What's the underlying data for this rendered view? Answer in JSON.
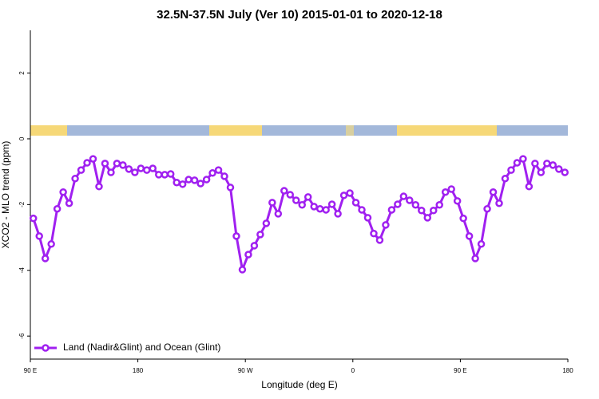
{
  "chart_data": {
    "type": "line",
    "title": "32.5N-37.5N July (Ver 10)   2015-01-01 to 2020-12-18",
    "x_label": "Longitude (deg E)",
    "y_label": "XCO2 - MLO trend (ppm)",
    "x": [
      92.5,
      97.5,
      102.5,
      107.5,
      112.5,
      117.5,
      122.5,
      127.5,
      132.5,
      137.5,
      142.5,
      147.5,
      152.5,
      157.5,
      162.5,
      167.5,
      172.5,
      177.5,
      182.5,
      187.5,
      192.5,
      197.5,
      202.5,
      207.5,
      212.5,
      217.5,
      222.5,
      227.5,
      232.5,
      237.5,
      242.5,
      247.5,
      252.5,
      257.5,
      262.5,
      267.5,
      272.5,
      277.5,
      282.5,
      287.5,
      292.5,
      297.5,
      302.5,
      307.5,
      312.5,
      317.5,
      322.5,
      327.5,
      332.5,
      337.5,
      342.5,
      347.5,
      352.5,
      357.5,
      362.5,
      367.5,
      372.5,
      377.5,
      382.5,
      387.5,
      392.5,
      397.5,
      402.5,
      407.5,
      412.5,
      417.5,
      422.5,
      427.5,
      432.5,
      437.5,
      442.5,
      447.5,
      452.5,
      457.5,
      462.5,
      467.5,
      472.5,
      477.5,
      482.5,
      487.5,
      492.5,
      497.5,
      502.5,
      507.5,
      512.5,
      517.5,
      522.5,
      527.5,
      532.5,
      537.5
    ],
    "series": [
      {
        "name": "Land (Nadir&Glint) and Ocean (Glint)",
        "color": "#a020f0",
        "values": [
          -2.42,
          -2.96,
          -3.64,
          -3.2,
          -2.13,
          -1.62,
          -1.96,
          -1.21,
          -0.95,
          -0.73,
          -0.61,
          -1.45,
          -0.75,
          -1.02,
          -0.75,
          -0.8,
          -0.92,
          -1.02,
          -0.9,
          -0.95,
          -0.9,
          -1.09,
          -1.09,
          -1.07,
          -1.33,
          -1.38,
          -1.24,
          -1.26,
          -1.36,
          -1.24,
          -1.04,
          -0.95,
          -1.14,
          -1.48,
          -2.96,
          -3.98,
          -3.52,
          -3.25,
          -2.91,
          -2.57,
          -1.94,
          -2.28,
          -1.58,
          -1.7,
          -1.87,
          -2.01,
          -1.77,
          -2.06,
          -2.13,
          -2.16,
          -1.99,
          -2.28,
          -1.72,
          -1.65,
          -1.94,
          -2.16,
          -2.4,
          -2.88,
          -3.08,
          -2.62,
          -2.16,
          -1.99,
          -1.75,
          -1.87,
          -2.01,
          -2.18,
          -2.4,
          -2.18,
          -2.01,
          -1.62,
          -1.53,
          -1.89,
          -2.42,
          -2.96,
          -3.64,
          -3.2,
          -2.13,
          -1.62,
          -1.96,
          -1.21,
          -0.95,
          -0.73,
          -0.61,
          -1.45,
          -0.75,
          -1.02,
          -0.75,
          -0.8,
          -0.92,
          -1.02
        ]
      }
    ],
    "xlim": [
      90,
      540
    ],
    "xticks": [
      {
        "value": 90,
        "label": "90 E"
      },
      180,
      {
        "value": 270,
        "label": "90 W"
      },
      {
        "value": 360,
        "label": "0"
      },
      {
        "value": 450,
        "label": "90 E"
      },
      {
        "value": 540,
        "label": "180"
      }
    ],
    "ylim": [
      -6.7,
      3.3
    ],
    "yticks": [
      -6,
      -4,
      -2,
      0,
      2
    ],
    "legend": "bottom-left"
  }
}
